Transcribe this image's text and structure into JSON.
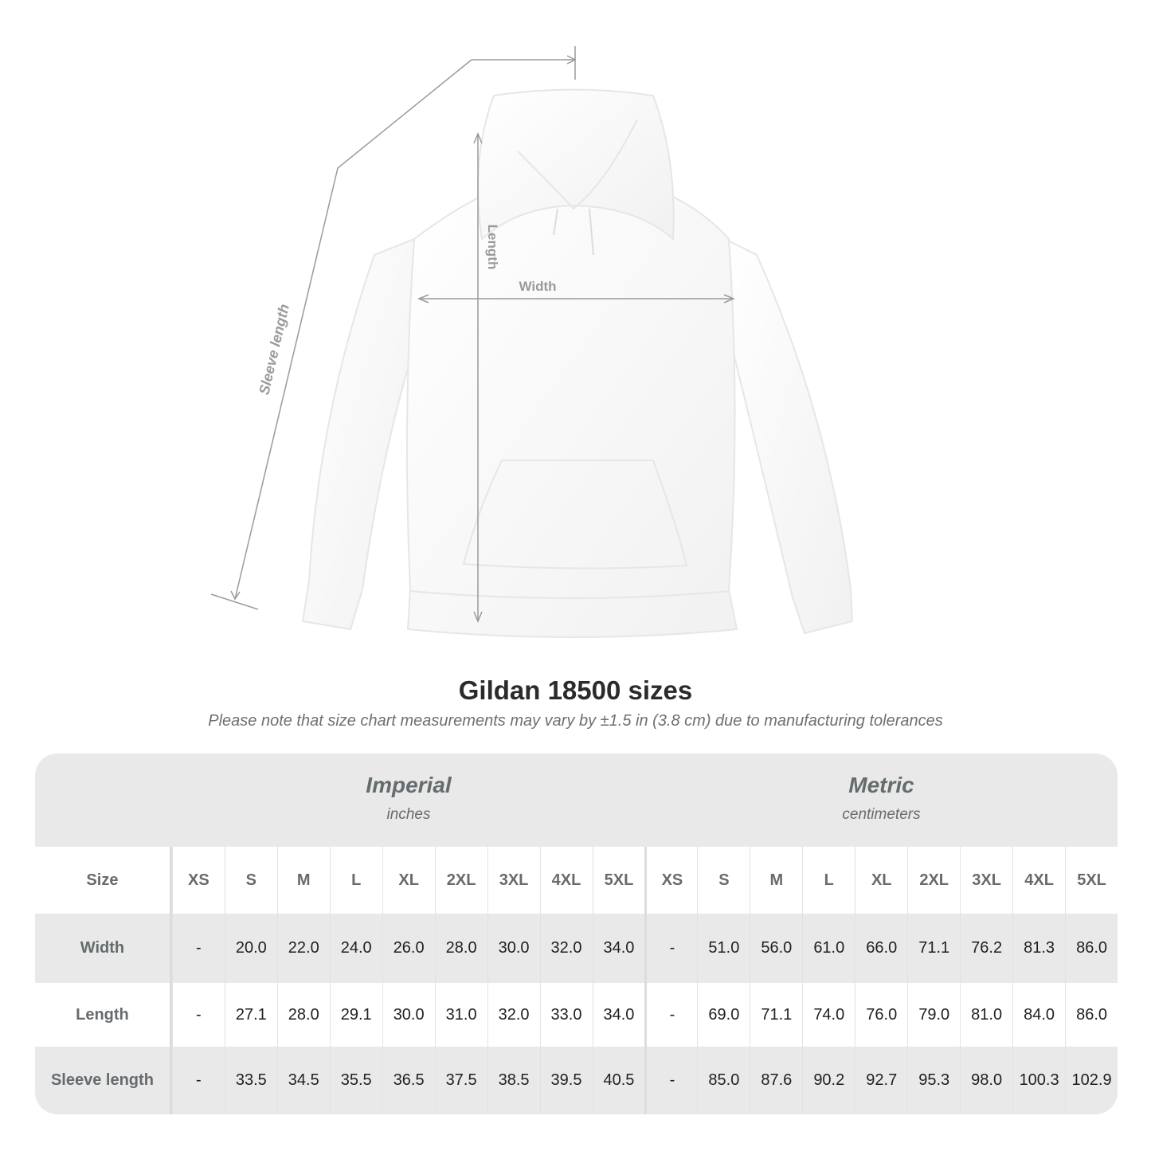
{
  "diagram": {
    "labels": {
      "sleeve": "Sleeve length",
      "length": "Length",
      "width": "Width"
    },
    "garment_color": "#fdfdfd",
    "line_color": "#9a9a9a"
  },
  "title": "Gildan 18500 sizes",
  "subtitle": "Please note that size chart measurements may vary by ±1.5 in (3.8 cm) due to manufacturing tolerances",
  "table": {
    "systems": [
      {
        "name": "Imperial",
        "unit": "inches"
      },
      {
        "name": "Metric",
        "unit": "centimeters"
      }
    ],
    "size_header": "Size",
    "sizes": [
      "XS",
      "S",
      "M",
      "L",
      "XL",
      "2XL",
      "3XL",
      "4XL",
      "5XL"
    ],
    "rows": [
      {
        "label": "Width",
        "imperial": [
          "-",
          "20.0",
          "22.0",
          "24.0",
          "26.0",
          "28.0",
          "30.0",
          "32.0",
          "34.0"
        ],
        "metric": [
          "-",
          "51.0",
          "56.0",
          "61.0",
          "66.0",
          "71.1",
          "76.2",
          "81.3",
          "86.0"
        ]
      },
      {
        "label": "Length",
        "imperial": [
          "-",
          "27.1",
          "28.0",
          "29.1",
          "30.0",
          "31.0",
          "32.0",
          "33.0",
          "34.0"
        ],
        "metric": [
          "-",
          "69.0",
          "71.1",
          "74.0",
          "76.0",
          "79.0",
          "81.0",
          "84.0",
          "86.0"
        ]
      },
      {
        "label": "Sleeve length",
        "imperial": [
          "-",
          "33.5",
          "34.5",
          "35.5",
          "36.5",
          "37.5",
          "38.5",
          "39.5",
          "40.5"
        ],
        "metric": [
          "-",
          "85.0",
          "87.6",
          "90.2",
          "92.7",
          "95.3",
          "98.0",
          "100.3",
          "102.9"
        ]
      }
    ]
  }
}
